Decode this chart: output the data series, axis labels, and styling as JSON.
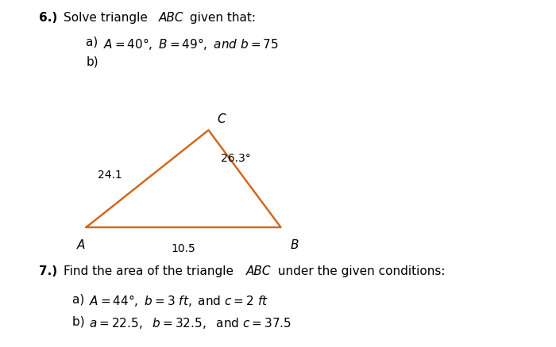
{
  "bg_color": "#ffffff",
  "triangle_color": "#d2691e",
  "triangle_A": [
    0.155,
    0.345
  ],
  "triangle_B": [
    0.505,
    0.345
  ],
  "triangle_C": [
    0.375,
    0.625
  ],
  "label_A": "A",
  "label_B": "B",
  "label_C": "C",
  "label_side_AC": "24.1",
  "label_side_AB": "10.5",
  "label_angle_C": "26.3°",
  "font_size_main": 11,
  "font_size_small": 10,
  "line_width": 1.8
}
